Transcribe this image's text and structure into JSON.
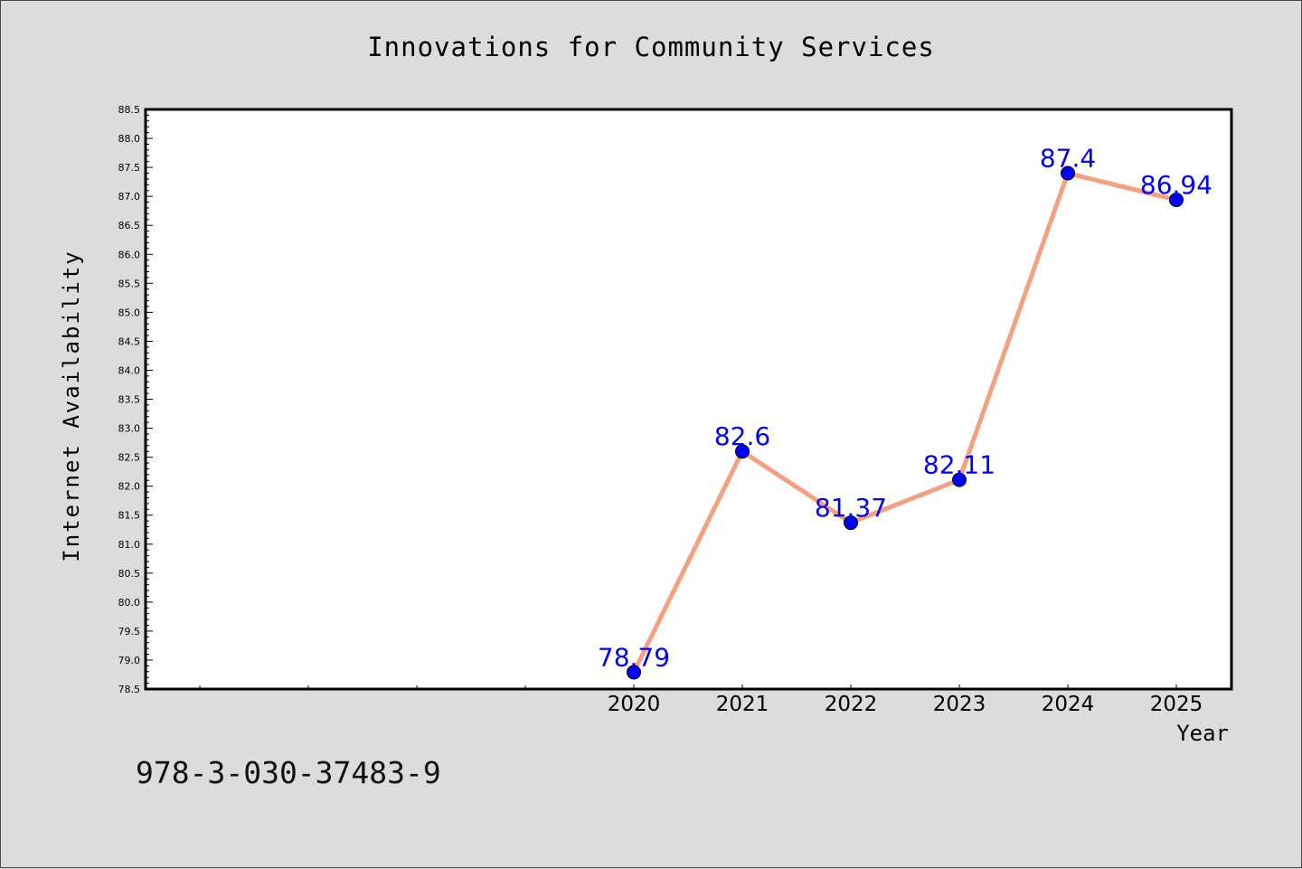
{
  "chart_data": {
    "type": "line",
    "title": "Innovations for Community Services",
    "xlabel": "Year",
    "ylabel": "Internet Availability",
    "categories": [
      "2020",
      "2021",
      "2022",
      "2023",
      "2024",
      "2025"
    ],
    "values": [
      78.79,
      82.6,
      81.37,
      82.11,
      87.4,
      86.94
    ],
    "value_labels": [
      "78.79",
      "82.6",
      "81.37",
      "82.11",
      "87.4",
      "86.94"
    ],
    "ylim": [
      78.5,
      88.5
    ],
    "y_tick_labels": [
      "78.5",
      "79.0",
      "79.5",
      "80.0",
      "80.5",
      "81.0",
      "81.5",
      "82.0",
      "82.5",
      "83.0",
      "83.5",
      "84.0",
      "84.5",
      "85.0",
      "85.5",
      "86.0",
      "86.5",
      "87.0",
      "87.5",
      "88.0",
      "88.5"
    ],
    "grid": false,
    "legend": "none",
    "colors": {
      "line": "#f4a081",
      "marker": "#0000ff",
      "data_label": "#0000ff",
      "background": "#dcdcdc",
      "plot_background": "#ffffff"
    }
  },
  "footer": {
    "isbn": "978-3-030-37483-9"
  }
}
